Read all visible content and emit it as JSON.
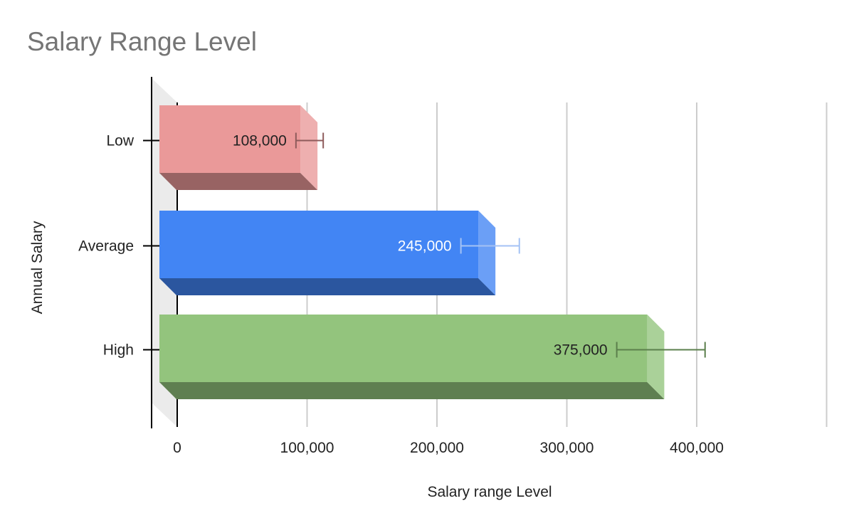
{
  "chart_data": {
    "type": "bar",
    "orientation": "horizontal",
    "style": "3d",
    "title": "Salary Range Level",
    "xlabel": "Salary range Level",
    "ylabel": "Annual Salary",
    "categories": [
      "Low",
      "Average",
      "High"
    ],
    "values": [
      108000,
      245000,
      375000
    ],
    "data_labels": [
      "108,000",
      "245,000",
      "375,000"
    ],
    "error_bars": [
      {
        "low": 98000,
        "high": 119000
      },
      {
        "low": 225000,
        "high": 270000
      },
      {
        "low": 345000,
        "high": 413000
      }
    ],
    "colors": [
      "#ea9999",
      "#4285f4",
      "#93c47d"
    ],
    "label_colors": [
      "#222222",
      "#ffffff",
      "#222222"
    ],
    "error_bar_colors": [
      "#8e5b5b",
      "#a4c2f4",
      "#5b7f4c"
    ],
    "xlim": [
      0,
      500000
    ],
    "xticks": [
      0,
      100000,
      200000,
      300000,
      400000
    ],
    "xtick_labels": [
      "0",
      "100,000",
      "200,000",
      "300,000",
      "400,000"
    ],
    "grid": true,
    "legend": "none"
  }
}
